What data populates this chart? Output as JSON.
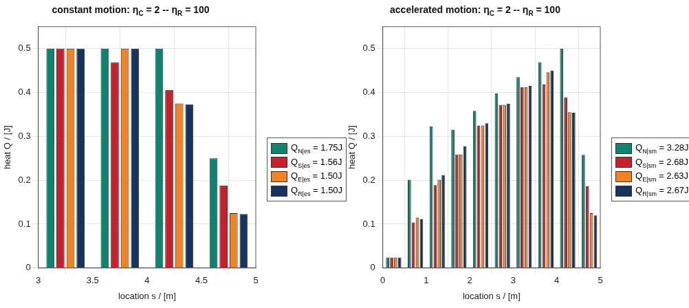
{
  "chart_data": [
    {
      "type": "bar",
      "title": "constant motion: η$_{C}$ = 2  --  η$_{R}$ = 100",
      "xlabel": "location s / [m]",
      "ylabel": "heat Q / [J]",
      "x": [
        3.25,
        3.75,
        4.25,
        4.75
      ],
      "xlim": [
        3,
        5
      ],
      "xticks": [
        3,
        3.5,
        4,
        4.5,
        5
      ],
      "ylim": [
        0,
        0.55
      ],
      "yticks": [
        0,
        0.1,
        0.2,
        0.3,
        0.4,
        0.5
      ],
      "grid": true,
      "legend": "right",
      "series": [
        {
          "name": "Q$_{N|es}$ = 1.75J",
          "color": "#0e8470",
          "values": [
            0.5,
            0.5,
            0.5,
            0.25
          ]
        },
        {
          "name": "Q$_{S|es}$ = 1.56J",
          "color": "#c8202a",
          "values": [
            0.5,
            0.469,
            0.406,
            0.188
          ]
        },
        {
          "name": "Q$_{E|es}$ = 1.50J",
          "color": "#f08322",
          "values": [
            0.5,
            0.5,
            0.375,
            0.125
          ]
        },
        {
          "name": "Q$_{R|es}$ = 1.50J",
          "color": "#15355f",
          "values": [
            0.5,
            0.5,
            0.373,
            0.123
          ]
        }
      ]
    },
    {
      "type": "bar",
      "title": "accelerated motion: η$_{C}$ = 2  --  η$_{R}$ = 100",
      "xlabel": "location s / [m]",
      "ylabel": "heat Q / [J]",
      "x": [
        0.25,
        0.75,
        1.25,
        1.75,
        2.25,
        2.75,
        3.25,
        3.75,
        4.25,
        4.75
      ],
      "xlim": [
        0,
        5
      ],
      "xticks": [
        0,
        1,
        2,
        3,
        4,
        5
      ],
      "ylim": [
        0,
        0.55
      ],
      "yticks": [
        0,
        0.1,
        0.2,
        0.3,
        0.4,
        0.5
      ],
      "grid": true,
      "legend": "right",
      "series": [
        {
          "name": "Q$_{N|sm}$ = 3.28J",
          "color": "#0e8470",
          "values": [
            0.024,
            0.201,
            0.323,
            0.315,
            0.358,
            0.398,
            0.435,
            0.469,
            0.5,
            0.258
          ]
        },
        {
          "name": "Q$_{S|sm}$ = 2.68J",
          "color": "#c8202a",
          "values": [
            0.024,
            0.104,
            0.189,
            0.259,
            0.325,
            0.372,
            0.412,
            0.418,
            0.389,
            0.187
          ]
        },
        {
          "name": "Q$_{E|sm}$ = 2.63J",
          "color": "#f08322",
          "values": [
            0.024,
            0.115,
            0.201,
            0.259,
            0.325,
            0.372,
            0.412,
            0.446,
            0.355,
            0.125
          ]
        },
        {
          "name": "Q$_{R|sm}$ = 2.67J",
          "color": "#15355f",
          "values": [
            0.024,
            0.111,
            0.212,
            0.278,
            0.33,
            0.374,
            0.415,
            0.45,
            0.354,
            0.12
          ]
        }
      ]
    }
  ]
}
